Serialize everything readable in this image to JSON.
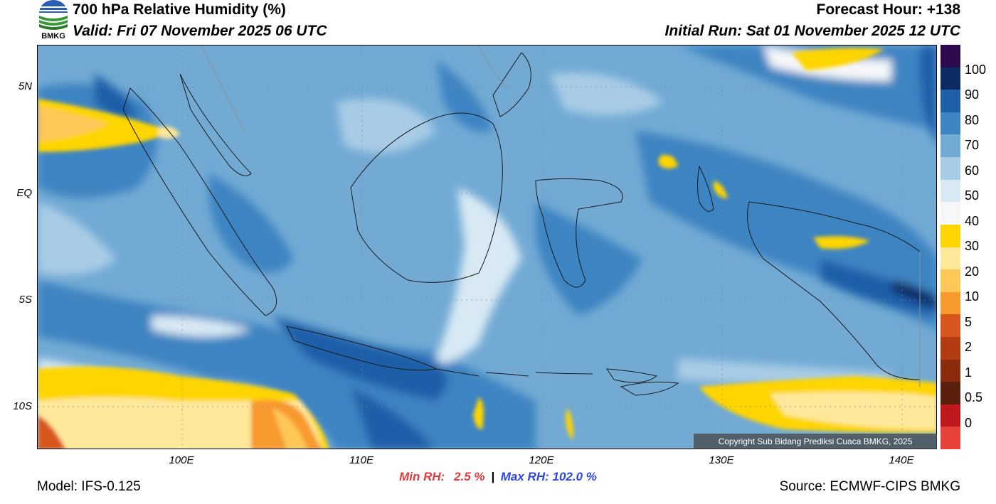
{
  "header": {
    "title": "700 hPa Relative Humidity (%)",
    "valid": "Valid: Fri 07 November 2025 06 UTC",
    "forecast_hour": "Forecast Hour: +138",
    "initial_run": "Initial Run: Sat 01 November 2025 12 UTC",
    "logo_text": "BMKG"
  },
  "axes": {
    "lat_labels": [
      "5N",
      "EQ",
      "5S",
      "10S"
    ],
    "lon_labels": [
      "100E",
      "110E",
      "120E",
      "130E",
      "140E"
    ]
  },
  "colorbar": {
    "labels": [
      "100",
      "90",
      "80",
      "70",
      "60",
      "50",
      "40",
      "30",
      "20",
      "10",
      "5",
      "2",
      "1",
      "0.5",
      "0"
    ],
    "colors": [
      "#2d0a4e",
      "#0c2a63",
      "#1f5fa8",
      "#3d84c2",
      "#72aad4",
      "#a8cce6",
      "#d8e9f4",
      "#f5f7f9",
      "#ffd500",
      "#ffe89a",
      "#ffc658",
      "#f89a2e",
      "#d8561d",
      "#b23b12",
      "#8b2b0d",
      "#5a1f0d",
      "#c0181d",
      "#e8413a"
    ]
  },
  "footer": {
    "min_label": "Min RH:",
    "min_value": "2.5 %",
    "separator": "|",
    "max_label": "Max RH:",
    "max_value": "102.0 %",
    "model": "Model: IFS-0.125",
    "source": "Source: ECMWF-CIPS BMKG",
    "copyright": "Copyright Sub Bidang Prediksi Cuaca BMKG, 2025"
  }
}
